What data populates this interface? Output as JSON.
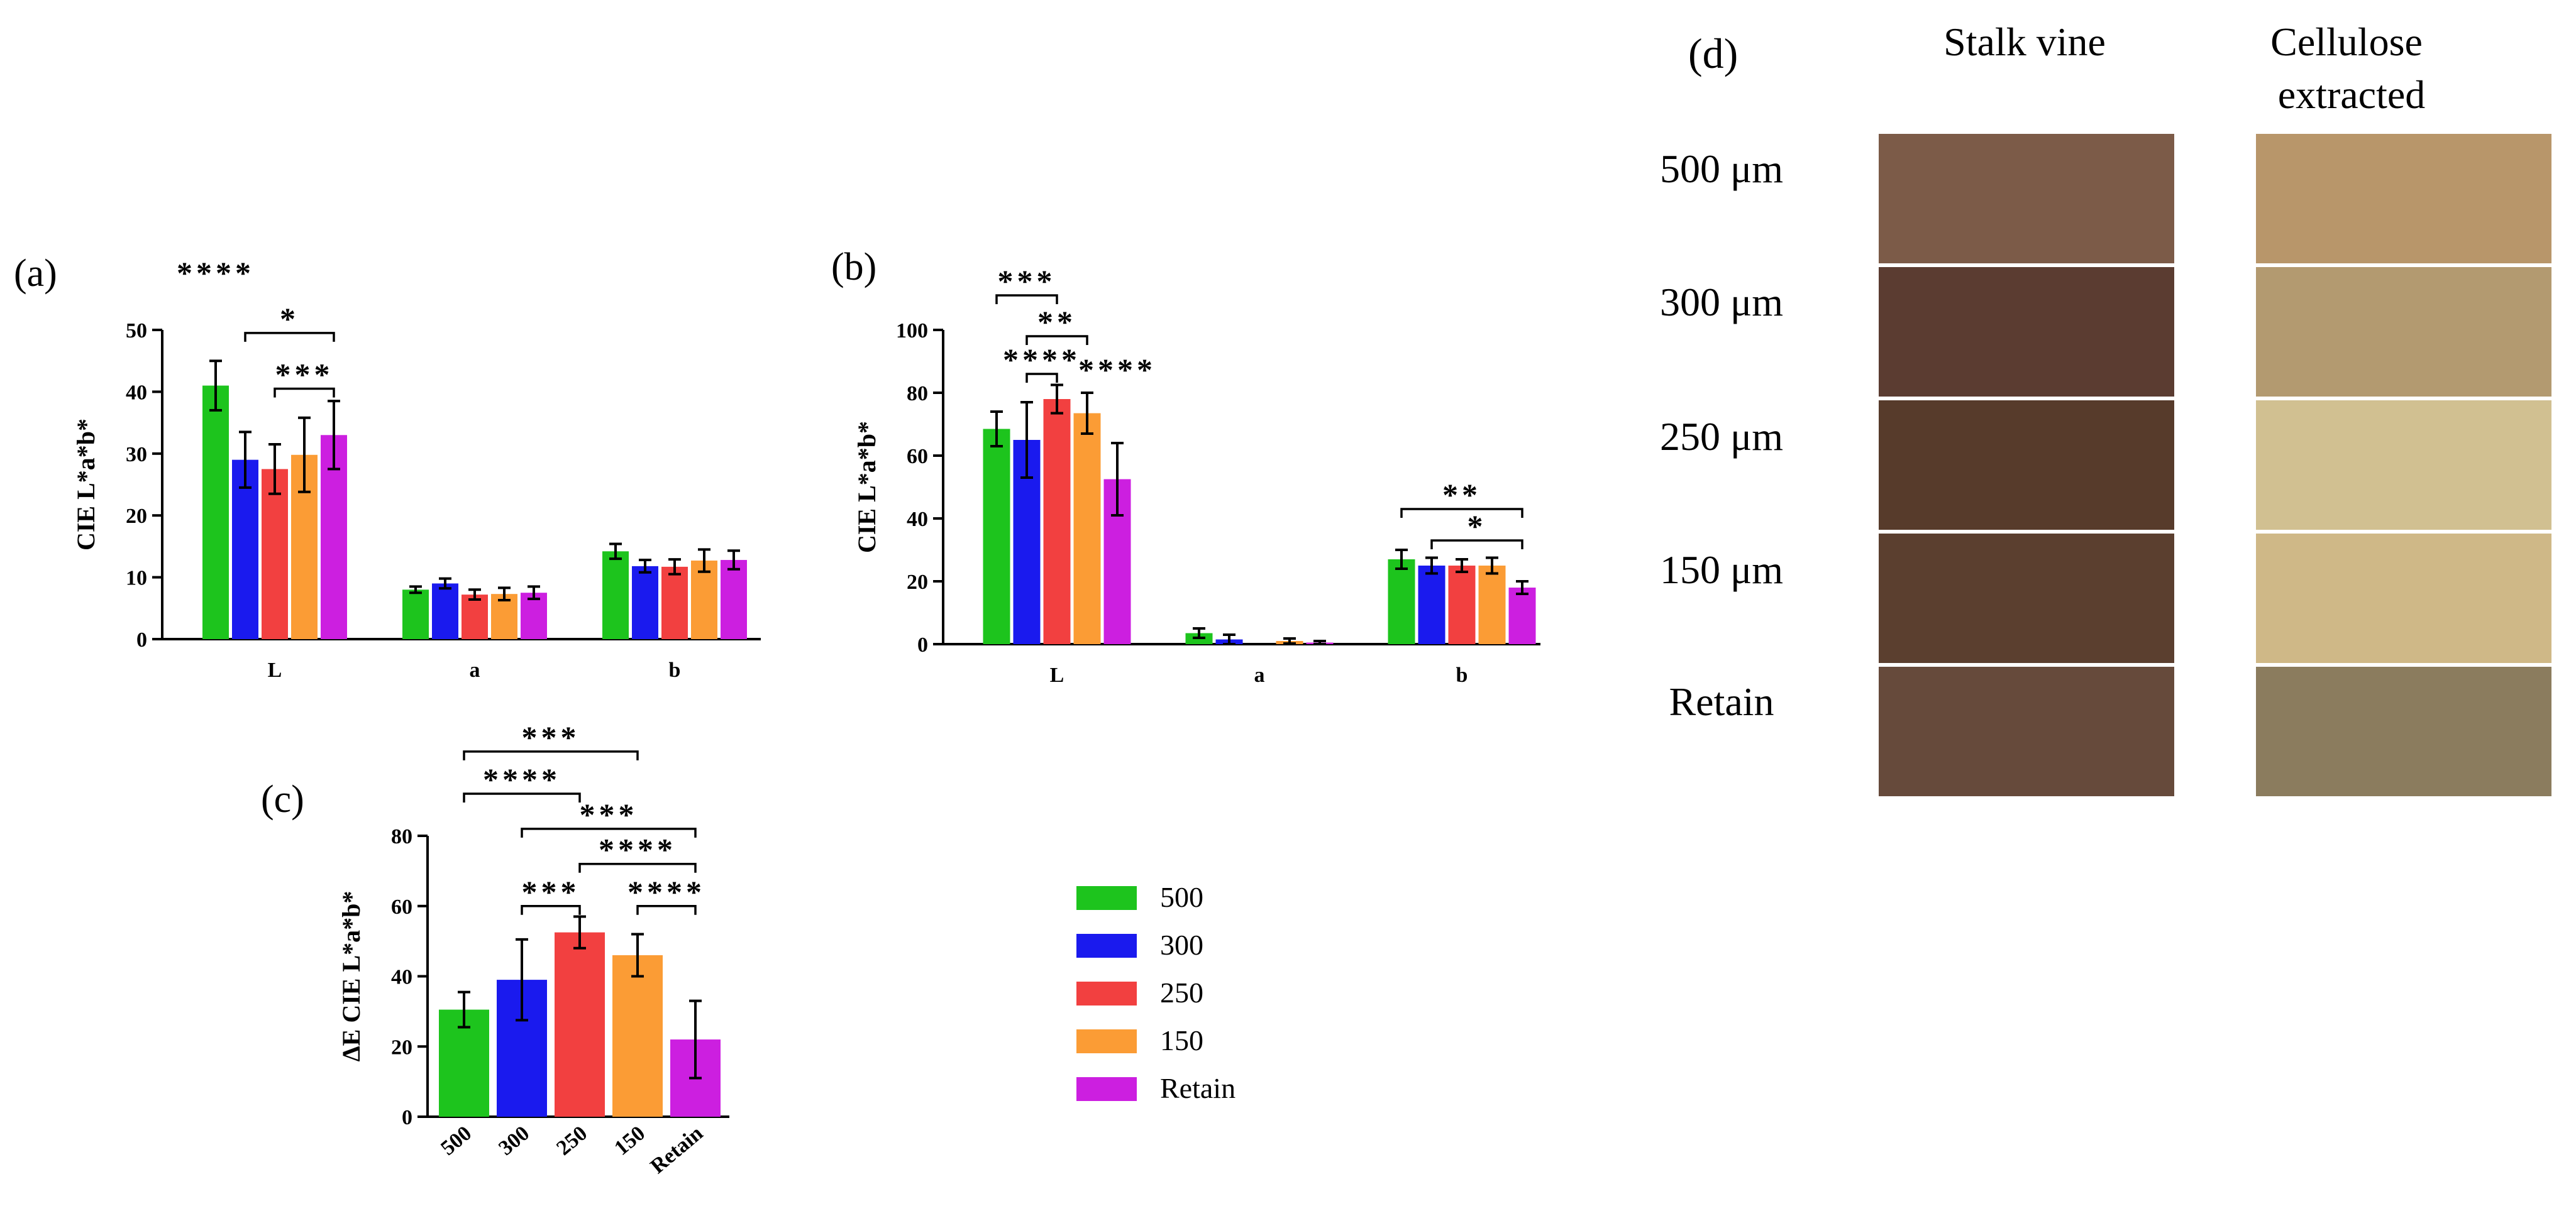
{
  "panel_labels": {
    "a": "(a)",
    "b": "(b)",
    "c": "(c)",
    "d": "(d)"
  },
  "colors": {
    "500": "#1dc41d",
    "300": "#1a1aee",
    "250": "#f24040",
    "150": "#fb9c35",
    "Retain": "#cc1fe0"
  },
  "legend": {
    "items": [
      {
        "label": "500",
        "color": "#1dc41d"
      },
      {
        "label": "300",
        "color": "#1a1aee"
      },
      {
        "label": "250",
        "color": "#f24040"
      },
      {
        "label": "150",
        "color": "#fb9c35"
      },
      {
        "label": "Retain",
        "color": "#cc1fe0"
      }
    ]
  },
  "chart_data": [
    {
      "id": "a",
      "type": "bar",
      "ylabel": "CIE L*a*b*",
      "ylim": [
        0,
        50
      ],
      "yticks": [
        0,
        10,
        20,
        30,
        40,
        50
      ],
      "categories": [
        "L",
        "a",
        "b"
      ],
      "series": [
        {
          "name": "500",
          "values": [
            41.0,
            8.0,
            14.2
          ],
          "errors": [
            4.0,
            0.5,
            1.2
          ]
        },
        {
          "name": "300",
          "values": [
            29.0,
            9.0,
            11.8
          ],
          "errors": [
            4.5,
            0.8,
            1.0
          ]
        },
        {
          "name": "250",
          "values": [
            27.5,
            7.2,
            11.7
          ],
          "errors": [
            4.0,
            0.8,
            1.2
          ]
        },
        {
          "name": "150",
          "values": [
            29.8,
            7.3,
            12.7
          ],
          "errors": [
            6.0,
            1.0,
            1.8
          ]
        },
        {
          "name": "Retain",
          "values": [
            33.0,
            7.5,
            12.8
          ],
          "errors": [
            5.5,
            1.0,
            1.5
          ]
        }
      ],
      "annotations": [
        {
          "type": "star",
          "text": "****",
          "cat": 0,
          "ser": 0,
          "y": 57.5
        },
        {
          "type": "bracket",
          "text": "*",
          "cat": 0,
          "from": 1,
          "to": 4,
          "y": 49.5
        },
        {
          "type": "bracket",
          "text": "***",
          "cat": 0,
          "from": 2,
          "to": 4,
          "y": 40.5
        }
      ]
    },
    {
      "id": "b",
      "type": "bar",
      "ylabel": "CIE L*a*b*",
      "ylim": [
        0,
        100
      ],
      "yticks": [
        0,
        20,
        40,
        60,
        80,
        100
      ],
      "categories": [
        "L",
        "a",
        "b"
      ],
      "series": [
        {
          "name": "500",
          "values": [
            68.5,
            3.5,
            27.0
          ],
          "errors": [
            5.5,
            1.5,
            3.0
          ]
        },
        {
          "name": "300",
          "values": [
            65.0,
            1.5,
            25.0
          ],
          "errors": [
            12.0,
            1.5,
            2.5
          ]
        },
        {
          "name": "250",
          "values": [
            78.0,
            0.0,
            25.0
          ],
          "errors": [
            4.5,
            0.0,
            2.0
          ]
        },
        {
          "name": "150",
          "values": [
            73.5,
            1.0,
            25.0
          ],
          "errors": [
            6.5,
            0.8,
            2.5
          ]
        },
        {
          "name": "Retain",
          "values": [
            52.5,
            0.5,
            18.0
          ],
          "errors": [
            11.5,
            0.5,
            2.0
          ]
        }
      ],
      "annotations": [
        {
          "type": "bracket",
          "text": "***",
          "cat": 0,
          "from": 0,
          "to": 2,
          "y": 111
        },
        {
          "type": "bracket",
          "text": "**",
          "cat": 0,
          "from": 1,
          "to": 3,
          "y": 98
        },
        {
          "type": "bracket",
          "text": "****",
          "cat": 0,
          "from": 1,
          "to": 2,
          "y": 86
        },
        {
          "type": "star",
          "text": "****",
          "cat": 0,
          "ser": 4,
          "y": 84
        },
        {
          "type": "bracket",
          "text": "**",
          "cat": 2,
          "from": 0,
          "to": 4,
          "y": 43
        },
        {
          "type": "bracket",
          "text": "*",
          "cat": 2,
          "from": 1,
          "to": 4,
          "y": 33
        }
      ]
    },
    {
      "id": "c",
      "type": "bar",
      "ylabel": "ΔE CIE L*a*b*",
      "ylim": [
        0,
        80
      ],
      "yticks": [
        0,
        20,
        40,
        60,
        80
      ],
      "categories": [
        "500",
        "300",
        "250",
        "150",
        "Retain"
      ],
      "values": [
        30.5,
        39.0,
        52.5,
        46.0,
        22.0
      ],
      "errors": [
        5.0,
        11.5,
        4.5,
        6.0,
        11.0
      ],
      "annotations": [
        {
          "type": "bracket",
          "text": "***",
          "from": 0,
          "to": 3,
          "y": 104
        },
        {
          "type": "bracket",
          "text": "****",
          "from": 0,
          "to": 2,
          "y": 92
        },
        {
          "type": "bracket",
          "text": "***",
          "from": 1,
          "to": 4,
          "y": 82
        },
        {
          "type": "bracket",
          "text": "****",
          "from": 2,
          "to": 4,
          "y": 72
        },
        {
          "type": "bracket",
          "text": "***",
          "from": 1,
          "to": 2,
          "y": 60
        },
        {
          "type": "bracket",
          "text": "****",
          "from": 3,
          "to": 4,
          "y": 60
        }
      ]
    }
  ],
  "swatches": {
    "columns": [
      "Stalk vine",
      "Cellulose extracted"
    ],
    "rows": [
      {
        "label": "500 μm",
        "stalk": "#7c5b48",
        "cellulose": "#b8966a"
      },
      {
        "label": "300 μm",
        "stalk": "#5b3c31",
        "cellulose": "#b39a70"
      },
      {
        "label": "250 μm",
        "stalk": "#573b2b",
        "cellulose": "#d1c091"
      },
      {
        "label": "150 μm",
        "stalk": "#5b3f2f",
        "cellulose": "#cfb887"
      },
      {
        "label": "Retain",
        "stalk": "#664a3b",
        "cellulose": "#8b7c5e"
      }
    ]
  }
}
